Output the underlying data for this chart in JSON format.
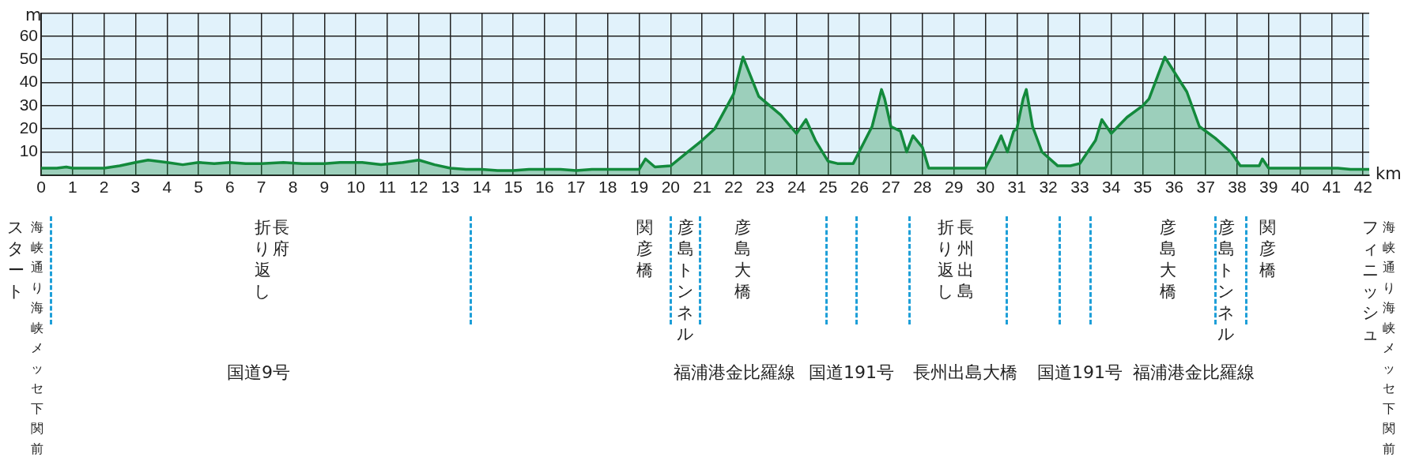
{
  "chart_data": {
    "type": "area",
    "ylabel": "m",
    "xlabel": "km",
    "color": "#138a3c",
    "x": [
      0,
      0.5,
      0.8,
      1,
      1.5,
      2,
      2.5,
      3,
      3.4,
      4,
      4.5,
      5,
      5.5,
      6,
      6.5,
      7,
      7.7,
      8.3,
      9,
      9.5,
      10.2,
      10.8,
      11.5,
      12,
      12.5,
      13,
      13.5,
      14,
      14.5,
      15,
      15.5,
      16,
      16.5,
      17,
      17.5,
      18,
      18.5,
      19,
      19.2,
      19.5,
      20,
      20.5,
      21,
      21.4,
      22,
      22.3,
      22.8,
      23.5,
      24,
      24.3,
      24.6,
      25,
      25.3,
      25.8,
      26.4,
      26.7,
      26.8,
      27,
      27.3,
      27.5,
      27.7,
      28,
      28.2,
      28.5,
      29,
      29.5,
      30,
      30.3,
      30.5,
      30.7,
      30.9,
      31,
      31.2,
      31.3,
      31.5,
      31.8,
      32.3,
      32.7,
      33,
      33.5,
      33.7,
      34,
      34.5,
      35,
      35.2,
      35.7,
      36.4,
      36.8,
      37.3,
      37.8,
      38.1,
      38.5,
      38.7,
      38.8,
      39,
      39.5,
      40,
      40.5,
      41,
      41.2,
      41.6,
      42,
      42.195
    ],
    "values": [
      3,
      3,
      3.5,
      3,
      3,
      3,
      4,
      5.5,
      6.5,
      5.5,
      4.5,
      5.5,
      5,
      5.5,
      5,
      5,
      5.5,
      5,
      5,
      5.5,
      5.5,
      4.5,
      5.5,
      6.5,
      4.5,
      3,
      2.5,
      2.5,
      2,
      2,
      2.5,
      2.5,
      2.5,
      2,
      2.5,
      2.5,
      2.5,
      2.5,
      7,
      3.5,
      4,
      9.5,
      15,
      20,
      35,
      51,
      34,
      26,
      18,
      24,
      15,
      6,
      5,
      5,
      21,
      37,
      33,
      21,
      19,
      10,
      17,
      12,
      3,
      3,
      3,
      3,
      3,
      11,
      17,
      10,
      19,
      20,
      33,
      37,
      21,
      10,
      4,
      4,
      5,
      15,
      24,
      18,
      25,
      30,
      33,
      51,
      36,
      21,
      16,
      10,
      4,
      4,
      4,
      7,
      3,
      3,
      3,
      3,
      3,
      3,
      2.5,
      2.5,
      2.5
    ],
    "xlim": [
      0,
      42.195
    ],
    "ylim": [
      0,
      70
    ],
    "xticks": [
      0,
      1,
      2,
      3,
      4,
      5,
      6,
      7,
      8,
      9,
      10,
      11,
      12,
      13,
      14,
      15,
      16,
      17,
      18,
      19,
      20,
      21,
      22,
      23,
      24,
      25,
      26,
      27,
      28,
      29,
      30,
      31,
      32,
      33,
      34,
      35,
      36,
      37,
      38,
      39,
      40,
      41,
      42
    ],
    "yticks": [
      {
        "value": 0,
        "label": null
      },
      10,
      20,
      30,
      40,
      50,
      60,
      {
        "value": 70,
        "label": null
      }
    ],
    "grid": true,
    "marker": "none",
    "legend": false,
    "annotations": [
      "海峡通り海峡メッセ下関前",
      "スタート",
      "長府",
      "折り返し",
      "関彦橋",
      "彦島トンネル",
      "彦島大橋",
      "長州出島",
      "折り返し",
      "彦島大橋",
      "彦島トンネル",
      "関彦橋",
      "海峡通り海峡メッセ下関前",
      "フィニッシュ",
      "国道9号",
      "福浦港金比羅線",
      "国道191号",
      "長州出島大橋",
      "国道191号",
      "福浦港金比羅線"
    ]
  }
}
